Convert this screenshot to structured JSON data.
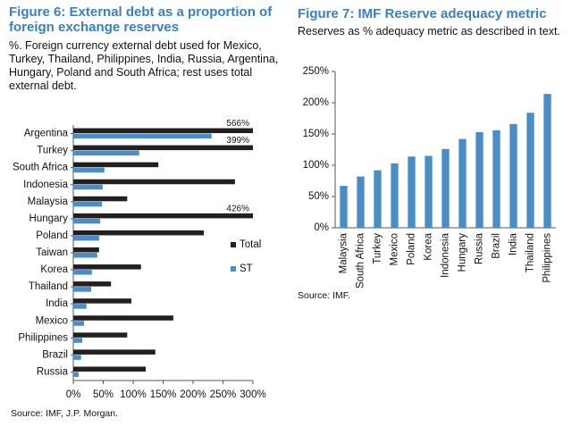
{
  "chart_data": [
    {
      "type": "bar",
      "orientation": "horizontal",
      "title": "Figure 6: External debt as a proportion of foreign exchange reserves",
      "subtitle": "%. Foreign currency external debt used for Mexico, Turkey, Thailand, Philippines, India, Russia, Argentina, Hungary, Poland and South Africa; rest uses total external debt.",
      "source": "Source: IMF, J.P. Morgan.",
      "categories": [
        "Argentina",
        "Turkey",
        "South Africa",
        "Indonesia",
        "Malaysia",
        "Hungary",
        "Poland",
        "Taiwan",
        "Korea",
        "Thailand",
        "India",
        "Mexico",
        "Philippines",
        "Brazil",
        "Russia"
      ],
      "series": [
        {
          "name": "Total",
          "color": "#231f20",
          "values": [
            566,
            399,
            142,
            270,
            90,
            426,
            218,
            43,
            113,
            63,
            97,
            167,
            90,
            137,
            121
          ],
          "value_labels": [
            "566%",
            "399%",
            null,
            null,
            null,
            "426%",
            null,
            null,
            null,
            null,
            null,
            null,
            null,
            null,
            null
          ]
        },
        {
          "name": "ST",
          "color": "#4a8dc6",
          "values": [
            231,
            110,
            52,
            49,
            48,
            45,
            43,
            40,
            31,
            30,
            22,
            18,
            15,
            13,
            9
          ]
        }
      ],
      "xlim": [
        0,
        300
      ],
      "xticks": [
        {
          "value": 0,
          "label": "0%"
        },
        {
          "value": 50,
          "label": "50%"
        },
        {
          "value": 100,
          "label": "100%"
        },
        {
          "value": 150,
          "label": "150%"
        },
        {
          "value": 200,
          "label": "200%"
        },
        {
          "value": 250,
          "label": "250%"
        },
        {
          "value": 300,
          "label": "300%"
        }
      ]
    },
    {
      "type": "bar",
      "title": "Figure 7: IMF Reserve adequacy metric",
      "subtitle": "Reserves as % adequacy metric as described in text.",
      "source": "Source: IMF.",
      "categories": [
        "Malaysia",
        "South Africa",
        "Turkey",
        "Mexico",
        "Poland",
        "Korea",
        "Indonesia",
        "Hungary",
        "Russia",
        "Brazil",
        "India",
        "Thailand",
        "Philippines"
      ],
      "values": [
        67,
        82,
        92,
        103,
        114,
        115,
        126,
        142,
        153,
        156,
        166,
        184,
        214
      ],
      "color": "#4a8dc6",
      "ylim": [
        0,
        250
      ],
      "yticks": [
        {
          "value": 0,
          "label": "0%"
        },
        {
          "value": 50,
          "label": "50%"
        },
        {
          "value": 100,
          "label": "100%"
        },
        {
          "value": 150,
          "label": "150%"
        },
        {
          "value": 200,
          "label": "200%"
        },
        {
          "value": 250,
          "label": "250%"
        }
      ]
    }
  ]
}
